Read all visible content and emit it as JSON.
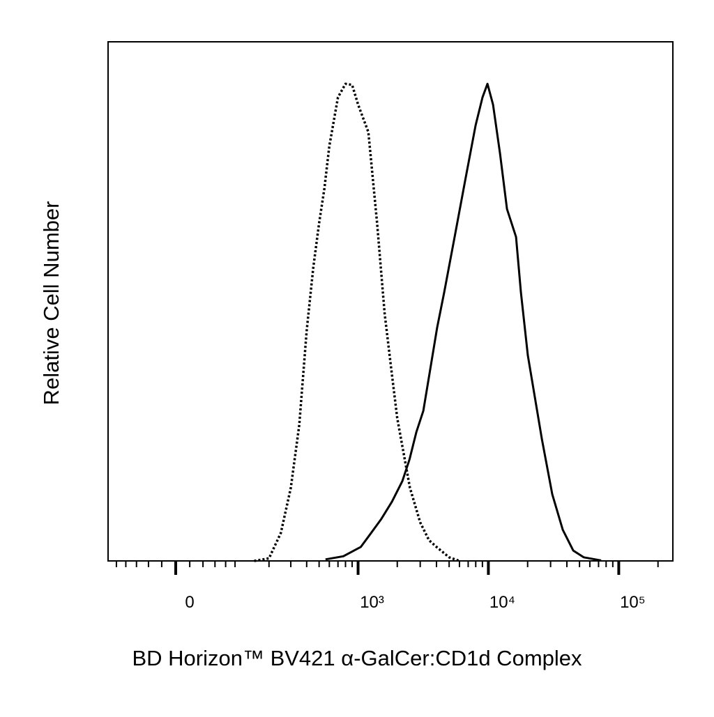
{
  "chart_data": {
    "type": "histogram-overlay",
    "x_label": "BD Horizon™ BV421 α-GalCer:CD1d Complex",
    "y_label": "Relative Cell Number",
    "xscale": "biexponential",
    "xlim": [
      -120,
      260000
    ],
    "ylim": [
      0,
      100
    ],
    "xticks": [
      {
        "value": 0,
        "label": "0"
      },
      {
        "value": 1000,
        "label": "10³"
      },
      {
        "value": 10000,
        "label": "10⁴"
      },
      {
        "value": 100000,
        "label": "10⁵"
      }
    ],
    "xminorticks": [
      -100,
      -80,
      -60,
      -40,
      -20,
      20,
      40,
      60,
      80,
      100,
      200,
      300,
      400,
      500,
      600,
      700,
      800,
      900,
      2000,
      3000,
      4000,
      5000,
      6000,
      7000,
      8000,
      9000,
      20000,
      30000,
      40000,
      50000,
      60000,
      70000,
      80000,
      90000,
      200000
    ],
    "series": [
      {
        "color": "#000000",
        "style": "dotted",
        "x": [
          150,
          200,
          250,
          300,
          350,
          400,
          450,
          500,
          550,
          600,
          700,
          800,
          900,
          1000,
          1200,
          1400,
          1600,
          1800,
          2000,
          2500,
          3000,
          3500,
          4000,
          5000,
          6000
        ],
        "values": [
          0,
          0.5,
          5.4,
          14.1,
          26.2,
          44.3,
          56.4,
          65.1,
          71.8,
          79.9,
          89.3,
          91.9,
          91.7,
          87.9,
          82.6,
          65.1,
          47.7,
          36.9,
          27.5,
          14.1,
          7.4,
          4.0,
          2.7,
          0.7,
          0
        ]
      },
      {
        "color": "#000000",
        "style": "solid",
        "x": [
          560,
          770,
          1050,
          1260,
          1510,
          1820,
          2190,
          2480,
          2800,
          3170,
          3580,
          4050,
          4580,
          5510,
          6630,
          7980,
          9020,
          9840,
          10860,
          12280,
          13890,
          16300,
          17760,
          20080,
          22720,
          25710,
          30930,
          37190,
          44760,
          53810,
          73200
        ],
        "values": [
          0.3,
          0.9,
          2.7,
          5.4,
          8.1,
          11.4,
          15.4,
          19.5,
          24.8,
          28.9,
          36.9,
          45.0,
          51.7,
          62.4,
          73.2,
          83.9,
          89.3,
          91.9,
          87.9,
          78.5,
          67.8,
          62.4,
          51.7,
          39.6,
          31.5,
          23.5,
          12.8,
          6.0,
          2.0,
          0.7,
          0.1
        ]
      }
    ]
  }
}
